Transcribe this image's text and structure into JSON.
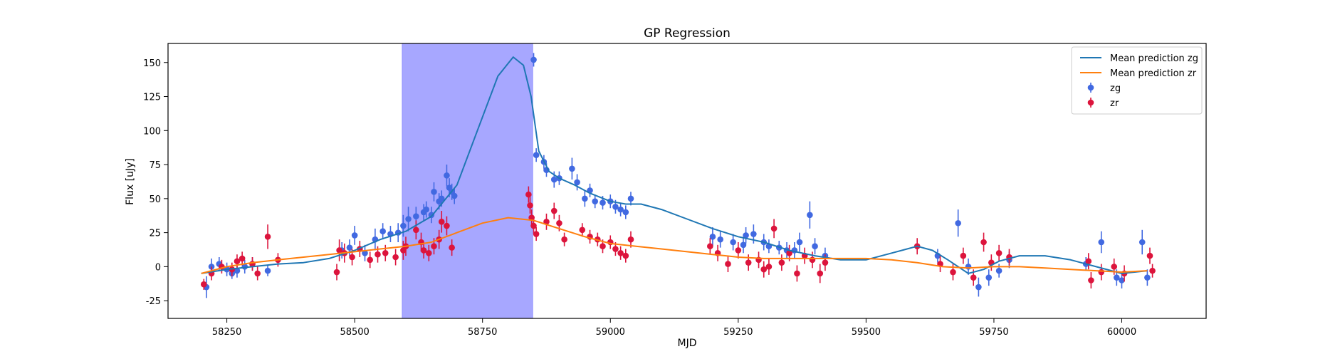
{
  "chart_data": {
    "type": "scatter",
    "title": "GP Regression",
    "xlabel": "MJD",
    "ylabel": "Flux [uJy]",
    "xlim": [
      58135,
      60165
    ],
    "ylim": [
      -38,
      164
    ],
    "xticks": [
      58250,
      58500,
      58750,
      59000,
      59250,
      59500,
      59750,
      60000
    ],
    "yticks": [
      -25,
      0,
      25,
      50,
      75,
      100,
      125,
      150
    ],
    "grid": false,
    "legend_position": "top-right",
    "shaded_region": {
      "x_start": 58593,
      "x_end": 58848,
      "color": "#a7a7ff"
    },
    "legend": [
      {
        "kind": "line",
        "label": "Mean prediction zg",
        "color": "#1f77b4"
      },
      {
        "kind": "line",
        "label": "Mean prediction zr",
        "color": "#ff7f0e"
      },
      {
        "kind": "marker",
        "label": "zg",
        "color": "#4169e1"
      },
      {
        "kind": "marker",
        "label": "zr",
        "color": "#dc143c"
      }
    ],
    "lines": [
      {
        "name": "Mean prediction zg",
        "color": "#1f77b4",
        "points": [
          [
            58200,
            -5
          ],
          [
            58250,
            -2
          ],
          [
            58300,
            0
          ],
          [
            58350,
            2
          ],
          [
            58400,
            3
          ],
          [
            58450,
            6
          ],
          [
            58500,
            12
          ],
          [
            58550,
            20
          ],
          [
            58600,
            26
          ],
          [
            58650,
            37
          ],
          [
            58700,
            60
          ],
          [
            58740,
            100
          ],
          [
            58780,
            140
          ],
          [
            58810,
            154
          ],
          [
            58830,
            148
          ],
          [
            58845,
            125
          ],
          [
            58860,
            85
          ],
          [
            58880,
            70
          ],
          [
            58900,
            65
          ],
          [
            58930,
            60
          ],
          [
            58960,
            54
          ],
          [
            59000,
            48
          ],
          [
            59030,
            46
          ],
          [
            59060,
            46
          ],
          [
            59100,
            42
          ],
          [
            59150,
            35
          ],
          [
            59200,
            28
          ],
          [
            59250,
            22
          ],
          [
            59300,
            18
          ],
          [
            59350,
            12
          ],
          [
            59400,
            8
          ],
          [
            59450,
            5
          ],
          [
            59500,
            5
          ],
          [
            59550,
            10
          ],
          [
            59600,
            15
          ],
          [
            59630,
            12
          ],
          [
            59660,
            5
          ],
          [
            59700,
            -5
          ],
          [
            59730,
            -2
          ],
          [
            59760,
            4
          ],
          [
            59800,
            8
          ],
          [
            59850,
            8
          ],
          [
            59900,
            5
          ],
          [
            59950,
            0
          ],
          [
            60000,
            -5
          ],
          [
            60050,
            -3
          ]
        ]
      },
      {
        "name": "Mean prediction zr",
        "color": "#ff7f0e",
        "points": [
          [
            58200,
            -5
          ],
          [
            58250,
            0
          ],
          [
            58300,
            3
          ],
          [
            58350,
            5
          ],
          [
            58400,
            7
          ],
          [
            58450,
            9
          ],
          [
            58500,
            11
          ],
          [
            58550,
            13
          ],
          [
            58600,
            15
          ],
          [
            58650,
            18
          ],
          [
            58700,
            25
          ],
          [
            58750,
            32
          ],
          [
            58800,
            36
          ],
          [
            58850,
            34
          ],
          [
            58900,
            28
          ],
          [
            58950,
            22
          ],
          [
            59000,
            17
          ],
          [
            59050,
            15
          ],
          [
            59100,
            13
          ],
          [
            59150,
            11
          ],
          [
            59200,
            9
          ],
          [
            59250,
            7
          ],
          [
            59300,
            6
          ],
          [
            59350,
            6
          ],
          [
            59400,
            6
          ],
          [
            59450,
            6
          ],
          [
            59500,
            6
          ],
          [
            59550,
            5
          ],
          [
            59600,
            3
          ],
          [
            59650,
            0
          ],
          [
            59700,
            -1
          ],
          [
            59750,
            0
          ],
          [
            59800,
            0
          ],
          [
            59850,
            -1
          ],
          [
            59900,
            -2
          ],
          [
            59950,
            -3
          ],
          [
            60000,
            -4
          ],
          [
            60050,
            -3
          ]
        ]
      }
    ],
    "series": [
      {
        "name": "zg",
        "color": "#4169e1",
        "points": [
          [
            58210,
            -15,
            8
          ],
          [
            58220,
            0,
            6
          ],
          [
            58235,
            2,
            5
          ],
          [
            58250,
            -2,
            5
          ],
          [
            58260,
            -5,
            4
          ],
          [
            58270,
            -3,
            5
          ],
          [
            58285,
            0,
            5
          ],
          [
            58300,
            2,
            5
          ],
          [
            58330,
            -3,
            4
          ],
          [
            58475,
            12,
            6
          ],
          [
            58490,
            14,
            6
          ],
          [
            58500,
            23,
            7
          ],
          [
            58520,
            10,
            6
          ],
          [
            58540,
            20,
            8
          ],
          [
            58555,
            26,
            6
          ],
          [
            58570,
            24,
            6
          ],
          [
            58585,
            25,
            7
          ],
          [
            58595,
            30,
            8
          ],
          [
            58605,
            35,
            9
          ],
          [
            58620,
            37,
            7
          ],
          [
            58635,
            40,
            6
          ],
          [
            58640,
            42,
            6
          ],
          [
            58650,
            38,
            6
          ],
          [
            58655,
            55,
            7
          ],
          [
            58665,
            48,
            6
          ],
          [
            58670,
            50,
            6
          ],
          [
            58680,
            67,
            8
          ],
          [
            58685,
            58,
            7
          ],
          [
            58690,
            55,
            6
          ],
          [
            58695,
            52,
            6
          ],
          [
            58850,
            152,
            5
          ],
          [
            58855,
            82,
            5
          ],
          [
            58870,
            77,
            5
          ],
          [
            58875,
            71,
            5
          ],
          [
            58890,
            64,
            6
          ],
          [
            58900,
            65,
            5
          ],
          [
            58925,
            72,
            8
          ],
          [
            58935,
            62,
            6
          ],
          [
            58950,
            50,
            6
          ],
          [
            58960,
            56,
            5
          ],
          [
            58970,
            48,
            5
          ],
          [
            58985,
            47,
            5
          ],
          [
            59000,
            48,
            5
          ],
          [
            59010,
            44,
            5
          ],
          [
            59020,
            42,
            5
          ],
          [
            59030,
            40,
            5
          ],
          [
            59040,
            50,
            5
          ],
          [
            59200,
            22,
            7
          ],
          [
            59215,
            20,
            6
          ],
          [
            59240,
            18,
            6
          ],
          [
            59260,
            16,
            6
          ],
          [
            59265,
            23,
            6
          ],
          [
            59280,
            24,
            7
          ],
          [
            59300,
            18,
            6
          ],
          [
            59310,
            15,
            5
          ],
          [
            59330,
            14,
            5
          ],
          [
            59345,
            12,
            6
          ],
          [
            59360,
            12,
            6
          ],
          [
            59370,
            18,
            7
          ],
          [
            59390,
            38,
            10
          ],
          [
            59400,
            15,
            6
          ],
          [
            59420,
            8,
            6
          ],
          [
            59640,
            8,
            5
          ],
          [
            59680,
            32,
            10
          ],
          [
            59700,
            0,
            6
          ],
          [
            59720,
            -15,
            7
          ],
          [
            59740,
            -8,
            6
          ],
          [
            59760,
            -3,
            5
          ],
          [
            59780,
            5,
            6
          ],
          [
            59930,
            2,
            5
          ],
          [
            59960,
            18,
            8
          ],
          [
            59990,
            -8,
            6
          ],
          [
            60000,
            -10,
            6
          ],
          [
            60040,
            18,
            9
          ],
          [
            60050,
            -8,
            6
          ]
        ]
      },
      {
        "name": "zr",
        "color": "#dc143c",
        "points": [
          [
            58205,
            -13,
            4
          ],
          [
            58220,
            -5,
            5
          ],
          [
            58240,
            0,
            5
          ],
          [
            58260,
            -2,
            5
          ],
          [
            58270,
            4,
            5
          ],
          [
            58280,
            6,
            5
          ],
          [
            58300,
            2,
            5
          ],
          [
            58310,
            -5,
            5
          ],
          [
            58330,
            22,
            9
          ],
          [
            58350,
            5,
            5
          ],
          [
            58465,
            -4,
            6
          ],
          [
            58470,
            12,
            8
          ],
          [
            58480,
            10,
            7
          ],
          [
            58495,
            7,
            6
          ],
          [
            58510,
            13,
            6
          ],
          [
            58530,
            5,
            6
          ],
          [
            58545,
            9,
            6
          ],
          [
            58560,
            10,
            6
          ],
          [
            58580,
            7,
            6
          ],
          [
            58595,
            12,
            7
          ],
          [
            58600,
            15,
            7
          ],
          [
            58620,
            27,
            7
          ],
          [
            58630,
            18,
            7
          ],
          [
            58635,
            12,
            6
          ],
          [
            58645,
            10,
            6
          ],
          [
            58655,
            15,
            6
          ],
          [
            58665,
            20,
            7
          ],
          [
            58670,
            33,
            8
          ],
          [
            58680,
            30,
            7
          ],
          [
            58690,
            14,
            6
          ],
          [
            58840,
            53,
            6
          ],
          [
            58843,
            45,
            6
          ],
          [
            58846,
            36,
            6
          ],
          [
            58850,
            30,
            6
          ],
          [
            58855,
            24,
            5
          ],
          [
            58875,
            33,
            6
          ],
          [
            58890,
            41,
            6
          ],
          [
            58900,
            32,
            6
          ],
          [
            58910,
            20,
            5
          ],
          [
            58945,
            27,
            5
          ],
          [
            58960,
            22,
            5
          ],
          [
            58975,
            20,
            5
          ],
          [
            58985,
            15,
            5
          ],
          [
            59000,
            18,
            5
          ],
          [
            59010,
            13,
            5
          ],
          [
            59020,
            10,
            5
          ],
          [
            59030,
            8,
            5
          ],
          [
            59040,
            20,
            6
          ],
          [
            59195,
            15,
            6
          ],
          [
            59210,
            10,
            6
          ],
          [
            59230,
            2,
            6
          ],
          [
            59250,
            12,
            6
          ],
          [
            59270,
            3,
            6
          ],
          [
            59290,
            5,
            6
          ],
          [
            59300,
            -2,
            6
          ],
          [
            59310,
            0,
            6
          ],
          [
            59320,
            28,
            7
          ],
          [
            59335,
            3,
            6
          ],
          [
            59350,
            10,
            6
          ],
          [
            59365,
            -5,
            6
          ],
          [
            59380,
            8,
            6
          ],
          [
            59395,
            5,
            6
          ],
          [
            59410,
            -5,
            7
          ],
          [
            59420,
            3,
            6
          ],
          [
            59600,
            15,
            6
          ],
          [
            59645,
            2,
            6
          ],
          [
            59670,
            -4,
            6
          ],
          [
            59690,
            8,
            6
          ],
          [
            59710,
            -8,
            6
          ],
          [
            59730,
            18,
            7
          ],
          [
            59745,
            3,
            6
          ],
          [
            59760,
            10,
            6
          ],
          [
            59780,
            7,
            6
          ],
          [
            59940,
            -10,
            6
          ],
          [
            59935,
            4,
            6
          ],
          [
            59960,
            -4,
            6
          ],
          [
            59985,
            0,
            6
          ],
          [
            60005,
            -5,
            6
          ],
          [
            60055,
            8,
            6
          ],
          [
            60060,
            -3,
            5
          ]
        ]
      }
    ]
  }
}
